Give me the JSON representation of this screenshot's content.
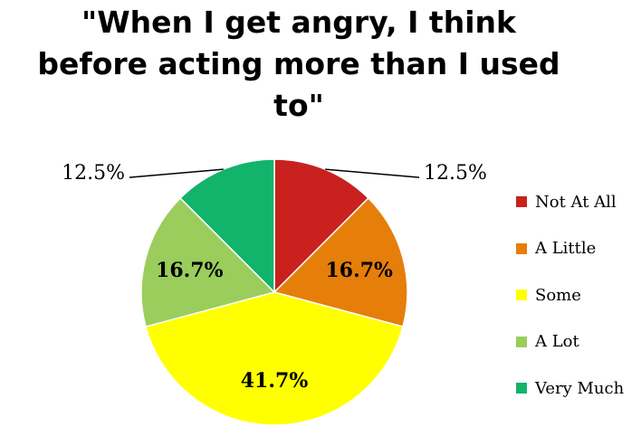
{
  "chart_data": {
    "type": "pie",
    "title": "\"When I get angry, I think before acting more than I used to\"",
    "title_lines": [
      "\"When I get angry, I think",
      "before acting more than I used",
      "to\""
    ],
    "categories": [
      "Not At All",
      "A Little",
      "Some",
      "A Lot",
      "Very Much"
    ],
    "values": [
      12.5,
      16.7,
      41.7,
      16.7,
      12.5
    ],
    "labels": [
      "12.5%",
      "16.7%",
      "41.7%",
      "16.7%",
      "12.5%"
    ],
    "colors": [
      "#C9211E",
      "#E67E0A",
      "#FFFF00",
      "#9ACD5C",
      "#12B36A"
    ],
    "start_angle_deg": 0,
    "direction": "clockwise",
    "legend_position": "right"
  }
}
